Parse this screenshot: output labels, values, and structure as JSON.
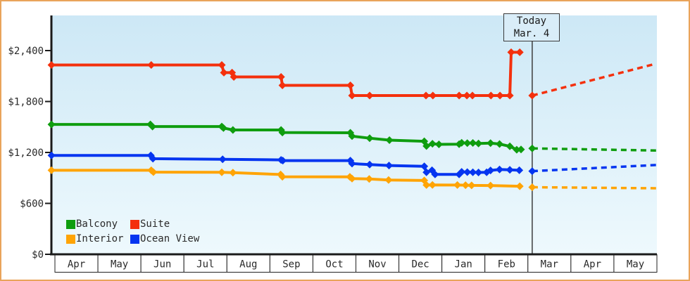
{
  "legend": {
    "items": [
      {
        "label": "Balcony",
        "color": "#0f9d0f",
        "slug": "balcony"
      },
      {
        "label": "Suite",
        "color": "#f4300d",
        "slug": "suite"
      },
      {
        "label": "Interior",
        "color": "#ffa405",
        "slug": "interior"
      },
      {
        "label": "Ocean View",
        "color": "#0535f0",
        "slug": "ocean-view"
      }
    ]
  },
  "chart_data": {
    "type": "line",
    "unit": "USD",
    "title": "",
    "x_axis": {
      "note": "x values are fractional month units, 0 = start of first Apr cell",
      "month_labels": [
        "Apr",
        "May",
        "Jun",
        "Jul",
        "Aug",
        "Sep",
        "Oct",
        "Nov",
        "Dec",
        "Jan",
        "Feb",
        "Mar",
        "Apr",
        "May"
      ]
    },
    "y_axis": {
      "min": 0,
      "max": 2400,
      "tick_step": 600,
      "ticks": [
        {
          "value": 0,
          "label": "$0"
        },
        {
          "value": 600,
          "label": "$600"
        },
        {
          "value": 1200,
          "label": "$1,200"
        },
        {
          "value": 1800,
          "label": "$1,800"
        },
        {
          "value": 2400,
          "label": "$2,400"
        }
      ]
    },
    "today": {
      "x": 11.1,
      "label": "Today",
      "date": "Mar. 4"
    },
    "series": [
      {
        "name": "Suite",
        "slug": "suite",
        "color": "#f4300d",
        "marker": "diamond",
        "history": [
          [
            -0.08,
            2230
          ],
          [
            2.24,
            2230
          ],
          [
            3.88,
            2230
          ],
          [
            3.93,
            2140
          ],
          [
            4.12,
            2140
          ],
          [
            4.16,
            2090
          ],
          [
            5.26,
            2090
          ],
          [
            5.29,
            1990
          ],
          [
            6.87,
            1990
          ],
          [
            6.91,
            1870
          ],
          [
            7.32,
            1870
          ],
          [
            8.63,
            1870
          ],
          [
            8.79,
            1870
          ],
          [
            9.4,
            1870
          ],
          [
            9.58,
            1870
          ],
          [
            9.71,
            1870
          ],
          [
            10.14,
            1870
          ],
          [
            10.35,
            1870
          ],
          [
            10.58,
            1870
          ],
          [
            10.61,
            2380
          ],
          [
            10.81,
            2380
          ]
        ],
        "today_price": 1870,
        "projection": [
          [
            11.1,
            1870
          ],
          [
            13.98,
            2245
          ]
        ]
      },
      {
        "name": "Balcony",
        "slug": "balcony",
        "color": "#0f9d0f",
        "marker": "diamond",
        "history": [
          [
            -0.08,
            1530
          ],
          [
            2.22,
            1530
          ],
          [
            2.27,
            1505
          ],
          [
            3.88,
            1505
          ],
          [
            3.92,
            1488
          ],
          [
            4.14,
            1465
          ],
          [
            5.26,
            1465
          ],
          [
            5.29,
            1435
          ],
          [
            6.87,
            1432
          ],
          [
            6.91,
            1392
          ],
          [
            7.32,
            1368
          ],
          [
            7.78,
            1345
          ],
          [
            8.59,
            1332
          ],
          [
            8.64,
            1275
          ],
          [
            8.78,
            1303
          ],
          [
            8.93,
            1295
          ],
          [
            9.4,
            1297
          ],
          [
            9.46,
            1313
          ],
          [
            9.59,
            1310
          ],
          [
            9.72,
            1312
          ],
          [
            9.85,
            1306
          ],
          [
            10.13,
            1309
          ],
          [
            10.34,
            1299
          ],
          [
            10.58,
            1272
          ],
          [
            10.74,
            1232
          ],
          [
            10.84,
            1236
          ]
        ],
        "today_price": 1248,
        "projection": [
          [
            11.1,
            1248
          ],
          [
            13.98,
            1222
          ]
        ]
      },
      {
        "name": "Ocean View",
        "slug": "ocean-view",
        "color": "#0535f0",
        "marker": "diamond",
        "history": [
          [
            -0.08,
            1165
          ],
          [
            2.23,
            1165
          ],
          [
            2.28,
            1126
          ],
          [
            3.9,
            1120
          ],
          [
            5.26,
            1112
          ],
          [
            5.3,
            1104
          ],
          [
            6.87,
            1104
          ],
          [
            6.91,
            1068
          ],
          [
            7.32,
            1058
          ],
          [
            7.77,
            1046
          ],
          [
            8.59,
            1036
          ],
          [
            8.64,
            966
          ],
          [
            8.77,
            990
          ],
          [
            8.84,
            942
          ],
          [
            9.4,
            942
          ],
          [
            9.46,
            972
          ],
          [
            9.59,
            968
          ],
          [
            9.72,
            966
          ],
          [
            9.85,
            964
          ],
          [
            10.04,
            966
          ],
          [
            10.13,
            988
          ],
          [
            10.34,
            1000
          ],
          [
            10.58,
            996
          ],
          [
            10.8,
            990
          ]
        ],
        "today_price": 980,
        "projection": [
          [
            11.1,
            980
          ],
          [
            13.98,
            1052
          ]
        ]
      },
      {
        "name": "Interior",
        "slug": "interior",
        "color": "#ffa405",
        "marker": "diamond",
        "history": [
          [
            -0.08,
            990
          ],
          [
            2.24,
            990
          ],
          [
            2.29,
            968
          ],
          [
            3.88,
            966
          ],
          [
            4.14,
            962
          ],
          [
            5.25,
            940
          ],
          [
            5.29,
            914
          ],
          [
            6.86,
            912
          ],
          [
            6.91,
            892
          ],
          [
            7.31,
            888
          ],
          [
            7.76,
            876
          ],
          [
            8.59,
            870
          ],
          [
            8.64,
            816
          ],
          [
            8.78,
            818
          ],
          [
            9.36,
            816
          ],
          [
            9.55,
            814
          ],
          [
            9.69,
            812
          ],
          [
            10.13,
            810
          ],
          [
            10.81,
            802
          ]
        ],
        "today_price": 790,
        "projection": [
          [
            11.1,
            790
          ],
          [
            13.98,
            778
          ]
        ]
      }
    ]
  }
}
